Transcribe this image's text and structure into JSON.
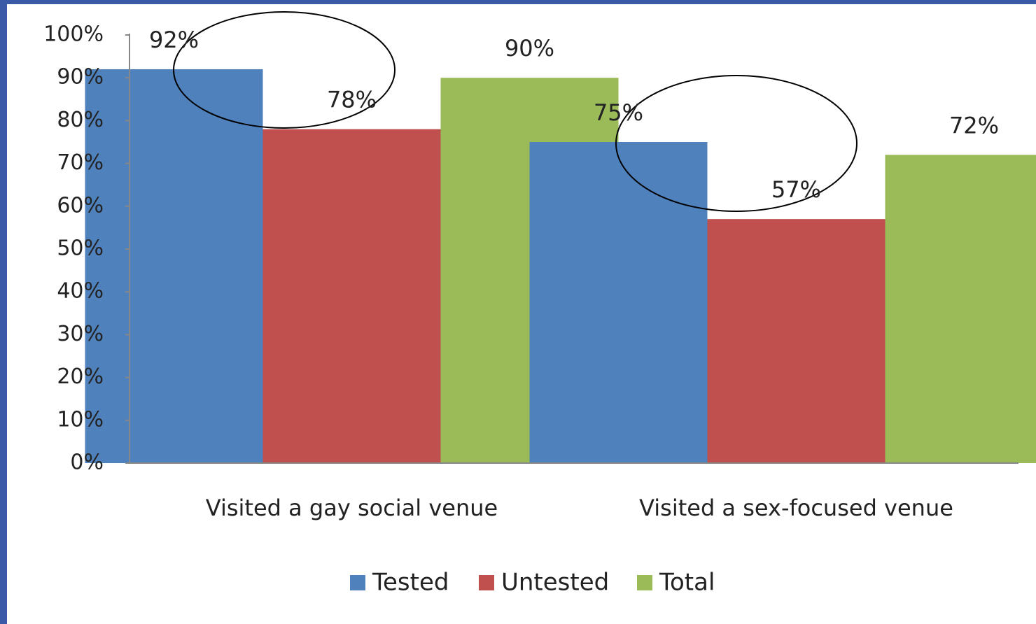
{
  "chart_data": {
    "type": "bar",
    "categories": [
      "Visited a gay social venue",
      "Visited a sex-focused  venue"
    ],
    "series": [
      {
        "name": "Tested",
        "color": "#4f81bd",
        "values": [
          92,
          75
        ],
        "value_labels": [
          "92%",
          "75%"
        ]
      },
      {
        "name": "Untested",
        "color": "#c0504d",
        "values": [
          78,
          57
        ],
        "value_labels": [
          "78%",
          "57%"
        ]
      },
      {
        "name": "Total",
        "color": "#9bbb59",
        "values": [
          90,
          72
        ],
        "value_labels": [
          "90%",
          "72%"
        ]
      }
    ],
    "ylim": [
      0,
      100
    ],
    "yticks": [
      {
        "value": 0,
        "label": "0%"
      },
      {
        "value": 10,
        "label": "10%"
      },
      {
        "value": 20,
        "label": "20%"
      },
      {
        "value": 30,
        "label": "30%"
      },
      {
        "value": 40,
        "label": "40%"
      },
      {
        "value": 50,
        "label": "50%"
      },
      {
        "value": 60,
        "label": "60%"
      },
      {
        "value": 70,
        "label": "70%"
      },
      {
        "value": 80,
        "label": "80%"
      },
      {
        "value": 90,
        "label": "90%"
      },
      {
        "value": 100,
        "label": "100%"
      }
    ],
    "grid": false,
    "legend": "bottom"
  }
}
